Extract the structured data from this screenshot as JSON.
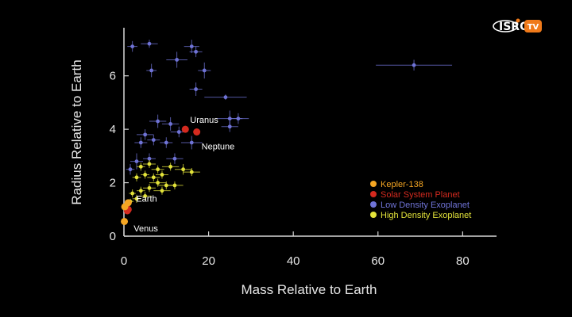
{
  "logo": {
    "text": "ISRO TV",
    "colors": {
      "ring": "#ffffff",
      "accent": "#f07a1a"
    }
  },
  "colors": {
    "background": "#000000",
    "axis": "#d8d8d8",
    "kepler": "#f5a623",
    "solar": "#d42a1f",
    "low_density": "#6f73d6",
    "high_density": "#e3e33a",
    "point_label": "#ffffff"
  },
  "chart_data": {
    "type": "scatter",
    "xlabel": "Mass Relative to Earth",
    "ylabel": "Radius Relative to Earth",
    "xlim": [
      0,
      88
    ],
    "ylim": [
      0,
      7.8
    ],
    "xticks": [
      0,
      20,
      40,
      60,
      80
    ],
    "yticks": [
      0,
      2,
      4,
      6
    ],
    "legend_position": "bottom-right",
    "legend": [
      {
        "label": "Kepler-138",
        "color": "#f5a623"
      },
      {
        "label": "Solar System Planet",
        "color": "#d42a1f"
      },
      {
        "label": "Low Density Exoplanet",
        "color": "#6f73d6"
      },
      {
        "label": "High Density Exoplanet",
        "color": "#e3e33a"
      }
    ],
    "series": [
      {
        "name": "Low Density Exoplanet",
        "color": "#6f73d6",
        "points": [
          {
            "x": 2,
            "y": 7.1,
            "xerr": 1.2,
            "yerr": 0.2
          },
          {
            "x": 6,
            "y": 7.2,
            "xerr": 2,
            "yerr": 0.15
          },
          {
            "x": 6.5,
            "y": 6.2,
            "xerr": 1.2,
            "yerr": 0.25
          },
          {
            "x": 12.5,
            "y": 6.6,
            "xerr": 2.5,
            "yerr": 0.3
          },
          {
            "x": 16,
            "y": 7.1,
            "xerr": 1.8,
            "yerr": 0.25
          },
          {
            "x": 17,
            "y": 6.9,
            "xerr": 1.5,
            "yerr": 0.2
          },
          {
            "x": 19,
            "y": 6.2,
            "xerr": 1.5,
            "yerr": 0.3
          },
          {
            "x": 17,
            "y": 5.5,
            "xerr": 1.5,
            "yerr": 0.25
          },
          {
            "x": 24,
            "y": 5.2,
            "xerr": 5,
            "yerr": 0.1
          },
          {
            "x": 68.5,
            "y": 6.4,
            "xerr": 9,
            "yerr": 0.2
          },
          {
            "x": 25,
            "y": 4.4,
            "xerr": 3,
            "yerr": 0.3
          },
          {
            "x": 27,
            "y": 4.4,
            "xerr": 2.5,
            "yerr": 0.2
          },
          {
            "x": 25,
            "y": 4.1,
            "xerr": 2,
            "yerr": 0.2
          },
          {
            "x": 8,
            "y": 4.3,
            "xerr": 2,
            "yerr": 0.25
          },
          {
            "x": 11,
            "y": 4.2,
            "xerr": 2,
            "yerr": 0.25
          },
          {
            "x": 5,
            "y": 3.8,
            "xerr": 2,
            "yerr": 0.2
          },
          {
            "x": 4,
            "y": 3.5,
            "xerr": 1.5,
            "yerr": 0.2
          },
          {
            "x": 7,
            "y": 3.6,
            "xerr": 1.5,
            "yerr": 0.2
          },
          {
            "x": 10,
            "y": 3.5,
            "xerr": 1.5,
            "yerr": 0.2
          },
          {
            "x": 13,
            "y": 3.9,
            "xerr": 2,
            "yerr": 0.2
          },
          {
            "x": 16,
            "y": 3.5,
            "xerr": 2.5,
            "yerr": 0.25
          },
          {
            "x": 3,
            "y": 2.8,
            "xerr": 1.5,
            "yerr": 0.3
          },
          {
            "x": 1.5,
            "y": 2.5,
            "xerr": 1,
            "yerr": 0.2
          },
          {
            "x": 6,
            "y": 2.9,
            "xerr": 1.5,
            "yerr": 0.2
          },
          {
            "x": 12,
            "y": 2.9,
            "xerr": 2,
            "yerr": 0.2
          }
        ]
      },
      {
        "name": "High Density Exoplanet",
        "color": "#e3e33a",
        "points": [
          {
            "x": 4,
            "y": 2.6,
            "xerr": 1,
            "yerr": 0.15
          },
          {
            "x": 6,
            "y": 2.7,
            "xerr": 1.5,
            "yerr": 0.15
          },
          {
            "x": 8,
            "y": 2.5,
            "xerr": 1.5,
            "yerr": 0.15
          },
          {
            "x": 11,
            "y": 2.6,
            "xerr": 2,
            "yerr": 0.15
          },
          {
            "x": 14,
            "y": 2.5,
            "xerr": 2,
            "yerr": 0.2
          },
          {
            "x": 16,
            "y": 2.4,
            "xerr": 2,
            "yerr": 0.15
          },
          {
            "x": 3,
            "y": 2.2,
            "xerr": 1,
            "yerr": 0.15
          },
          {
            "x": 5,
            "y": 2.3,
            "xerr": 1,
            "yerr": 0.15
          },
          {
            "x": 7,
            "y": 2.2,
            "xerr": 1.5,
            "yerr": 0.15
          },
          {
            "x": 9,
            "y": 2.3,
            "xerr": 1.5,
            "yerr": 0.15
          },
          {
            "x": 8,
            "y": 2.0,
            "xerr": 2,
            "yerr": 0.15
          },
          {
            "x": 10,
            "y": 1.9,
            "xerr": 2,
            "yerr": 0.15
          },
          {
            "x": 12,
            "y": 1.9,
            "xerr": 2,
            "yerr": 0.15
          },
          {
            "x": 6,
            "y": 1.8,
            "xerr": 1.5,
            "yerr": 0.15
          },
          {
            "x": 4,
            "y": 1.7,
            "xerr": 1,
            "yerr": 0.15
          },
          {
            "x": 9,
            "y": 1.7,
            "xerr": 2,
            "yerr": 0.15
          },
          {
            "x": 2,
            "y": 1.6,
            "xerr": 0.8,
            "yerr": 0.15
          },
          {
            "x": 5,
            "y": 1.5,
            "xerr": 1.5,
            "yerr": 0.15
          },
          {
            "x": 3,
            "y": 1.4,
            "xerr": 1,
            "yerr": 0.15
          },
          {
            "x": 1.5,
            "y": 1.3,
            "xerr": 0.8,
            "yerr": 0.1
          }
        ]
      },
      {
        "name": "Solar System Planet",
        "color": "#d42a1f",
        "points": [
          {
            "x": 14.5,
            "y": 4.0,
            "label": "Uranus"
          },
          {
            "x": 17.2,
            "y": 3.9,
            "label": "Neptune"
          },
          {
            "x": 1.0,
            "y": 1.0,
            "label": "Earth"
          },
          {
            "x": 0.8,
            "y": 0.95,
            "label": "Venus"
          }
        ]
      },
      {
        "name": "Kepler-138",
        "color": "#f5a623",
        "points": [
          {
            "x": 1.0,
            "y": 1.25
          },
          {
            "x": 0.2,
            "y": 1.1
          },
          {
            "x": 0.1,
            "y": 0.55
          }
        ]
      }
    ]
  }
}
